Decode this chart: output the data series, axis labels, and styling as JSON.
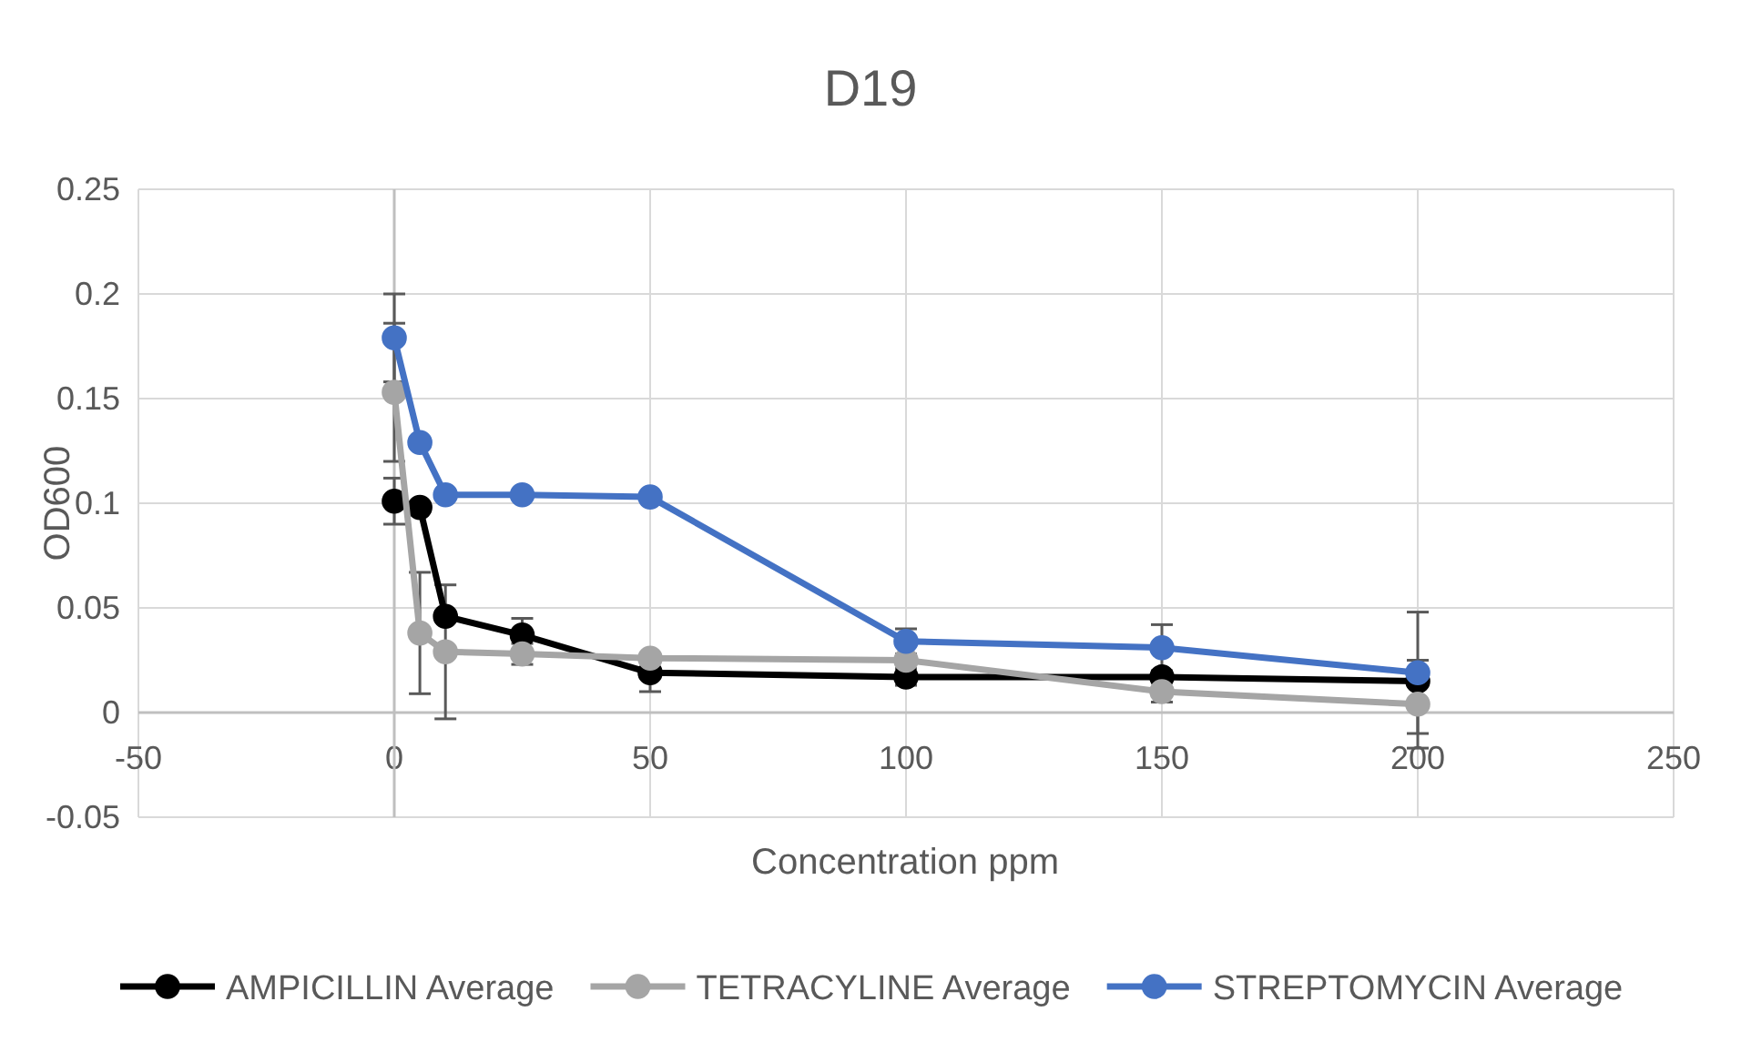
{
  "chart_data": {
    "type": "line",
    "title": "D19",
    "xlabel": "Concentration ppm",
    "ylabel": "OD600",
    "x": [
      0,
      5,
      10,
      25,
      50,
      100,
      150,
      200
    ],
    "series": [
      {
        "name": "AMPICILLIN Average",
        "color": "#000000",
        "values": [
          0.101,
          0.098,
          0.046,
          0.037,
          0.019,
          0.017,
          0.017,
          0.015
        ],
        "errors": [
          0.011,
          null,
          null,
          0.008,
          0.009,
          0.004,
          null,
          null
        ]
      },
      {
        "name": "TETRACYLINE Average",
        "color": "#a5a5a5",
        "values": [
          0.153,
          0.038,
          0.029,
          0.028,
          0.026,
          0.025,
          0.01,
          0.004
        ],
        "errors": [
          0.033,
          0.029,
          0.032,
          0.005,
          null,
          null,
          0.005,
          0.021
        ]
      },
      {
        "name": "STREPTOMYCIN Average",
        "color": "#4472c4",
        "values": [
          0.179,
          0.129,
          0.104,
          0.104,
          0.103,
          0.034,
          0.031,
          0.019
        ],
        "errors": [
          0.021,
          null,
          null,
          null,
          null,
          0.006,
          0.011,
          0.029
        ]
      }
    ],
    "xlim": [
      -50,
      250
    ],
    "xticks": [
      -50,
      0,
      50,
      100,
      150,
      200,
      250
    ],
    "ylim": [
      -0.05,
      0.25
    ],
    "yticks": [
      -0.05,
      0,
      0.05,
      0.1,
      0.15,
      0.2,
      0.25
    ],
    "grid": true,
    "legend": "bottom",
    "marker": "circle",
    "line_style": "solid"
  }
}
